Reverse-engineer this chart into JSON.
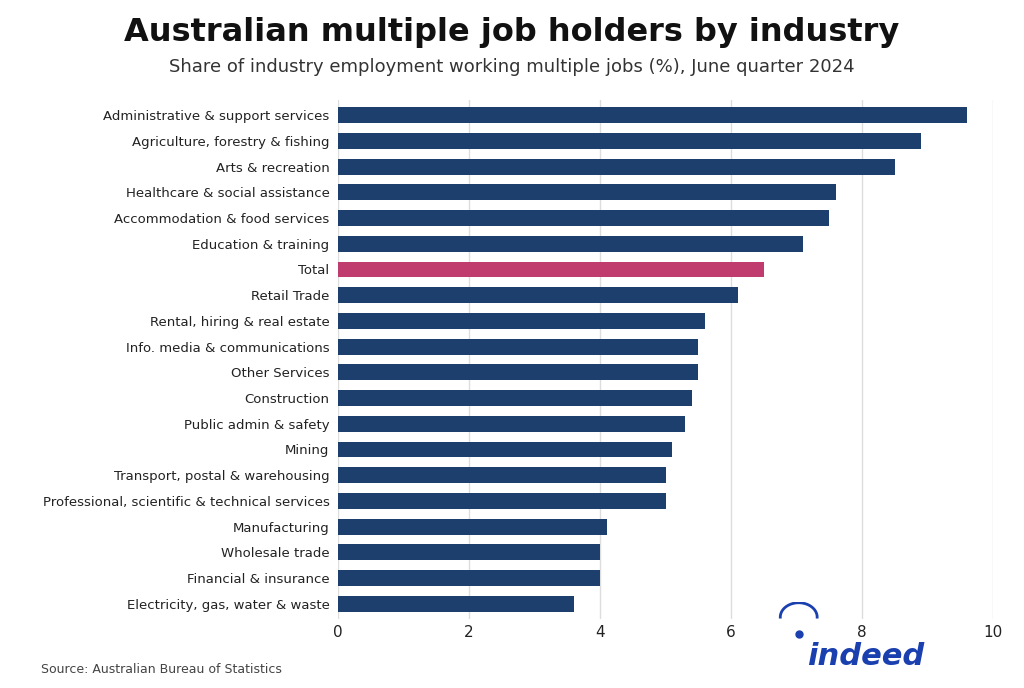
{
  "title": "Australian multiple job holders by industry",
  "subtitle": "Share of industry employment working multiple jobs (%), June quarter 2024",
  "source": "Source: Australian Bureau of Statistics",
  "categories": [
    "Administrative & support services",
    "Agriculture, forestry & fishing",
    "Arts & recreation",
    "Healthcare & social assistance",
    "Accommodation & food services",
    "Education & training",
    "Total",
    "Retail Trade",
    "Rental, hiring & real estate",
    "Info. media & communications",
    "Other Services",
    "Construction",
    "Public admin & safety",
    "Mining",
    "Transport, postal & warehousing",
    "Professional, scientific & technical services",
    "Manufacturing",
    "Wholesale trade",
    "Financial & insurance",
    "Electricity, gas, water & waste"
  ],
  "values": [
    9.6,
    8.9,
    8.5,
    7.6,
    7.5,
    7.1,
    6.5,
    6.1,
    5.6,
    5.5,
    5.5,
    5.4,
    5.3,
    5.1,
    5.0,
    5.0,
    4.1,
    4.0,
    4.0,
    3.6
  ],
  "bar_colors": [
    "#1c3f6e",
    "#1c3f6e",
    "#1c3f6e",
    "#1c3f6e",
    "#1c3f6e",
    "#1c3f6e",
    "#c03b6e",
    "#1c3f6e",
    "#1c3f6e",
    "#1c3f6e",
    "#1c3f6e",
    "#1c3f6e",
    "#1c3f6e",
    "#1c3f6e",
    "#1c3f6e",
    "#1c3f6e",
    "#1c3f6e",
    "#1c3f6e",
    "#1c3f6e",
    "#1c3f6e"
  ],
  "xlim": [
    0,
    10
  ],
  "xticks": [
    0,
    2,
    4,
    6,
    8,
    10
  ],
  "background_color": "#ffffff",
  "title_fontsize": 23,
  "subtitle_fontsize": 13,
  "bar_height": 0.62,
  "grid_color": "#e0e0e0",
  "axis_label_color": "#222222",
  "indeed_color": "#1a3faf"
}
